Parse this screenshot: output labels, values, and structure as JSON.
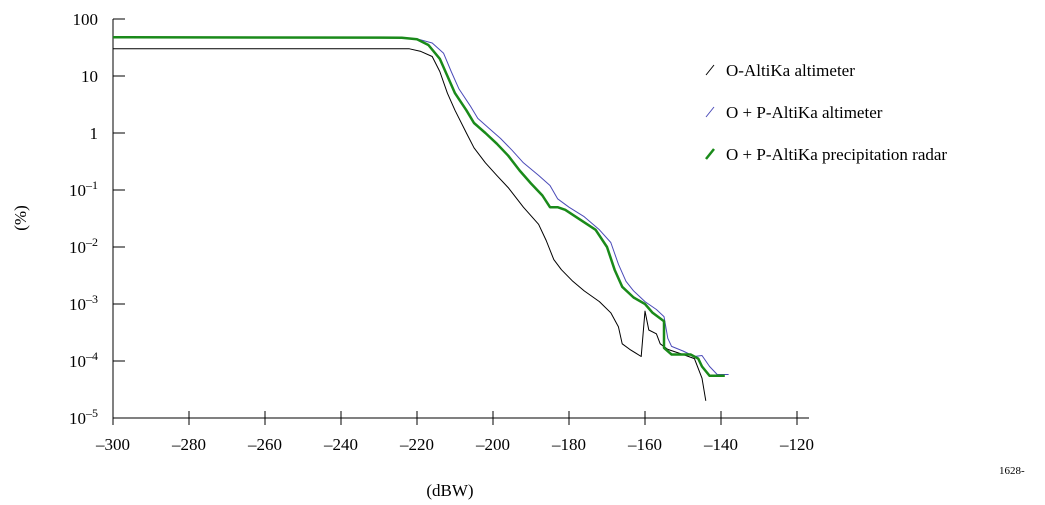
{
  "chart_data": {
    "type": "line",
    "xlabel": "(dBW)",
    "ylabel": "(%)",
    "xlim": [
      -300,
      -120
    ],
    "x_ticks": [
      -300,
      -280,
      -260,
      -240,
      -220,
      -200,
      -180,
      -160,
      -140,
      -120
    ],
    "x_tick_labels": [
      "–300",
      "–280",
      "–260",
      "–240",
      "–220",
      "–200",
      "–180",
      "–160",
      "–140",
      "–120"
    ],
    "y_scale": "log",
    "ylim": [
      1e-05,
      100
    ],
    "y_ticks": [
      100,
      10,
      1,
      0.1,
      0.01,
      0.001,
      0.0001,
      1e-05
    ],
    "y_tick_labels": [
      {
        "base": "100",
        "exp": ""
      },
      {
        "base": "10",
        "exp": ""
      },
      {
        "base": "1",
        "exp": ""
      },
      {
        "base": "10",
        "exp": "–1"
      },
      {
        "base": "10",
        "exp": "–2"
      },
      {
        "base": "10",
        "exp": "–3"
      },
      {
        "base": "10",
        "exp": "–4"
      },
      {
        "base": "10",
        "exp": "–5"
      }
    ],
    "grid": false,
    "legend_position": "right",
    "series": [
      {
        "name": "O-AltiKa altimeter",
        "color": "#000000",
        "stroke": 1,
        "points": [
          [
            -300,
            30
          ],
          [
            -222,
            30
          ],
          [
            -219,
            27
          ],
          [
            -216,
            22
          ],
          [
            -214,
            12
          ],
          [
            -212,
            5
          ],
          [
            -210,
            2.5
          ],
          [
            -207,
            1
          ],
          [
            -205,
            0.55
          ],
          [
            -202,
            0.3
          ],
          [
            -199,
            0.18
          ],
          [
            -196,
            0.11
          ],
          [
            -192,
            0.05
          ],
          [
            -188,
            0.025
          ],
          [
            -186,
            0.013
          ],
          [
            -184,
            0.006
          ],
          [
            -182,
            0.004
          ],
          [
            -179,
            0.0025
          ],
          [
            -176,
            0.0017
          ],
          [
            -172,
            0.0011
          ],
          [
            -169,
            0.0007
          ],
          [
            -167,
            0.0004
          ],
          [
            -166,
            0.0002
          ],
          [
            -164,
            0.00016
          ],
          [
            -161,
            0.00012
          ],
          [
            -160,
            0.00075
          ],
          [
            -159,
            0.00035
          ],
          [
            -157,
            0.0003
          ],
          [
            -156,
            0.0002
          ],
          [
            -154,
            0.00016
          ],
          [
            -150,
            0.00013
          ],
          [
            -147,
            0.00011
          ],
          [
            -145,
            5e-05
          ],
          [
            -144,
            2e-05
          ]
        ]
      },
      {
        "name": "O + P-AltiKa altimeter",
        "color": "#4a4ab8",
        "stroke": 1,
        "points": [
          [
            -300,
            48
          ],
          [
            -224,
            47
          ],
          [
            -220,
            45
          ],
          [
            -216,
            38
          ],
          [
            -213,
            25
          ],
          [
            -211,
            12
          ],
          [
            -209,
            6
          ],
          [
            -206,
            3
          ],
          [
            -204,
            1.8
          ],
          [
            -201,
            1.2
          ],
          [
            -198,
            0.8
          ],
          [
            -195,
            0.5
          ],
          [
            -192,
            0.3
          ],
          [
            -188,
            0.18
          ],
          [
            -185,
            0.12
          ],
          [
            -183,
            0.07
          ],
          [
            -180,
            0.05
          ],
          [
            -176,
            0.034
          ],
          [
            -172,
            0.02
          ],
          [
            -169,
            0.012
          ],
          [
            -167,
            0.005
          ],
          [
            -165,
            0.0025
          ],
          [
            -163,
            0.0017
          ],
          [
            -160,
            0.0011
          ],
          [
            -157,
            0.0008
          ],
          [
            -155,
            0.0006
          ],
          [
            -154,
            0.00025
          ],
          [
            -153,
            0.00018
          ],
          [
            -150,
            0.00015
          ],
          [
            -147,
            0.00012
          ],
          [
            -145,
            0.000125
          ],
          [
            -143,
            8e-05
          ],
          [
            -141,
            5.8e-05
          ],
          [
            -138,
            5.8e-05
          ]
        ]
      },
      {
        "name": "O + P-AltiKa precipitation radar",
        "color": "#1a8a1a",
        "stroke": 2.5,
        "points": [
          [
            -300,
            48
          ],
          [
            -224,
            47
          ],
          [
            -220,
            44
          ],
          [
            -217,
            35
          ],
          [
            -214,
            20
          ],
          [
            -212,
            10
          ],
          [
            -210,
            5
          ],
          [
            -207,
            2.5
          ],
          [
            -205,
            1.5
          ],
          [
            -202,
            1
          ],
          [
            -199,
            0.65
          ],
          [
            -196,
            0.4
          ],
          [
            -193,
            0.22
          ],
          [
            -190,
            0.13
          ],
          [
            -187,
            0.08
          ],
          [
            -185,
            0.05
          ],
          [
            -183,
            0.05
          ],
          [
            -181,
            0.045
          ],
          [
            -177,
            0.03
          ],
          [
            -173,
            0.02
          ],
          [
            -170,
            0.01
          ],
          [
            -168,
            0.004
          ],
          [
            -166,
            0.002
          ],
          [
            -163,
            0.0013
          ],
          [
            -160,
            0.001
          ],
          [
            -158,
            0.0007
          ],
          [
            -155,
            0.0005
          ],
          [
            -155,
            0.00017
          ],
          [
            -153,
            0.00013
          ],
          [
            -148,
            0.00013
          ],
          [
            -146,
            0.00011
          ],
          [
            -145,
            8e-05
          ],
          [
            -143,
            5.5e-05
          ],
          [
            -139,
            5.5e-05
          ]
        ]
      }
    ]
  },
  "figure_code": "1628-"
}
